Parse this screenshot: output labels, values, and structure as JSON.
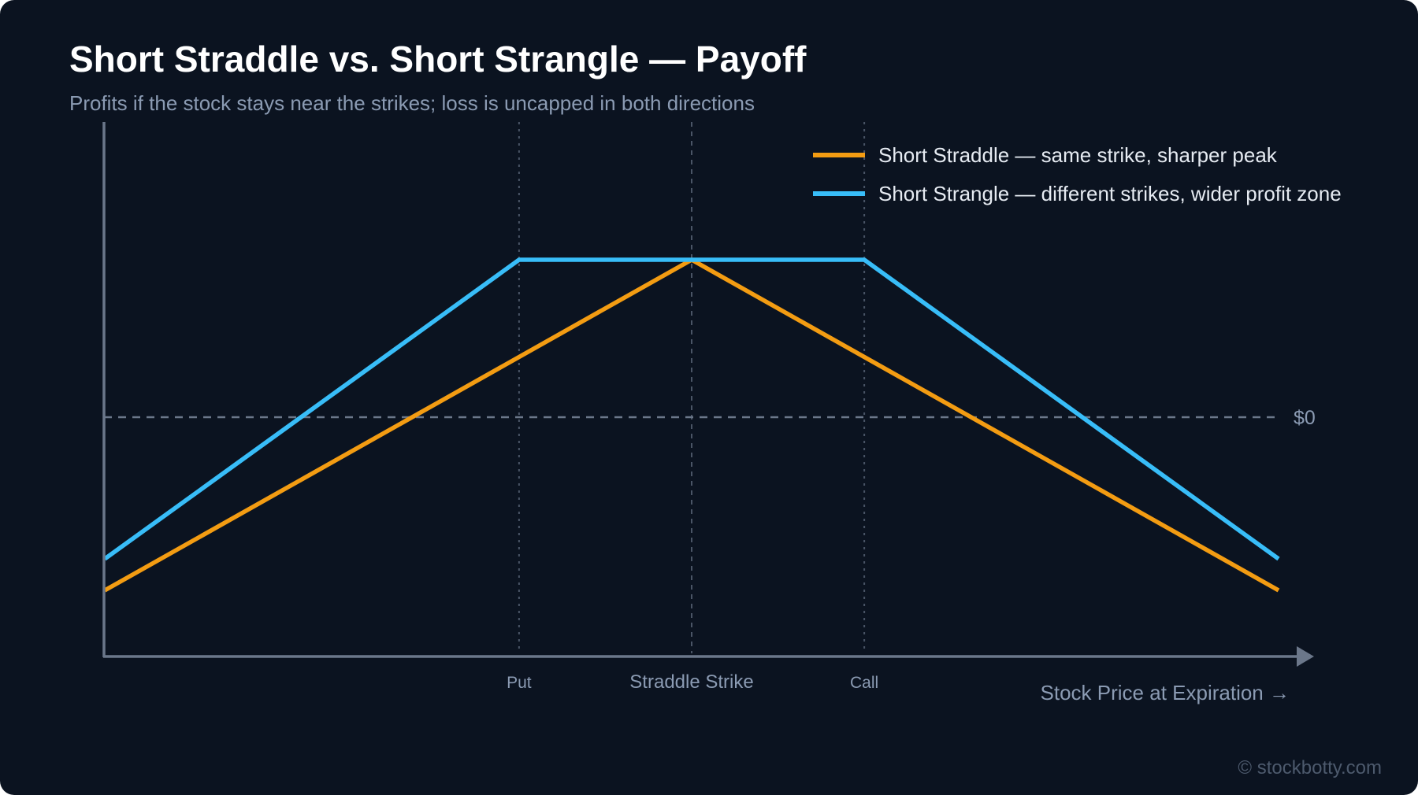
{
  "title": "Short Straddle vs. Short Strangle — Payoff",
  "subtitle": "Profits if the stock stays near the strikes; loss is uncapped in both directions",
  "watermark": "© stockbotty.com",
  "colors": {
    "background": "#0b1320",
    "straddle": "#f39c12",
    "strangle": "#38bdf8",
    "axis": "#6b778a",
    "grid": "#4a5566"
  },
  "chart_data": {
    "type": "line",
    "xlabel": "Stock Price at Expiration →",
    "ylabel": "",
    "x_ticks": [
      {
        "x": 0,
        "label": "Put"
      },
      {
        "x": 1,
        "label": "Straddle Strike"
      },
      {
        "x": 2,
        "label": "Call"
      }
    ],
    "zero_label": "$0",
    "xlim": [
      -2.4,
      4.4
    ],
    "ylim": [
      -6.5,
      5
    ],
    "legend_position": "top-right",
    "series": [
      {
        "name": "Short Straddle — same strike, sharper peak",
        "color": "#f39c12",
        "points": [
          [
            -2.4,
            -5.5
          ],
          [
            1,
            5
          ],
          [
            4.4,
            -5.5
          ]
        ]
      },
      {
        "name": "Short Strangle — different strikes, wider profit zone",
        "color": "#38bdf8",
        "points": [
          [
            -2.4,
            -4.5
          ],
          [
            0,
            5
          ],
          [
            2,
            5
          ],
          [
            4.4,
            -4.5
          ]
        ]
      }
    ]
  }
}
